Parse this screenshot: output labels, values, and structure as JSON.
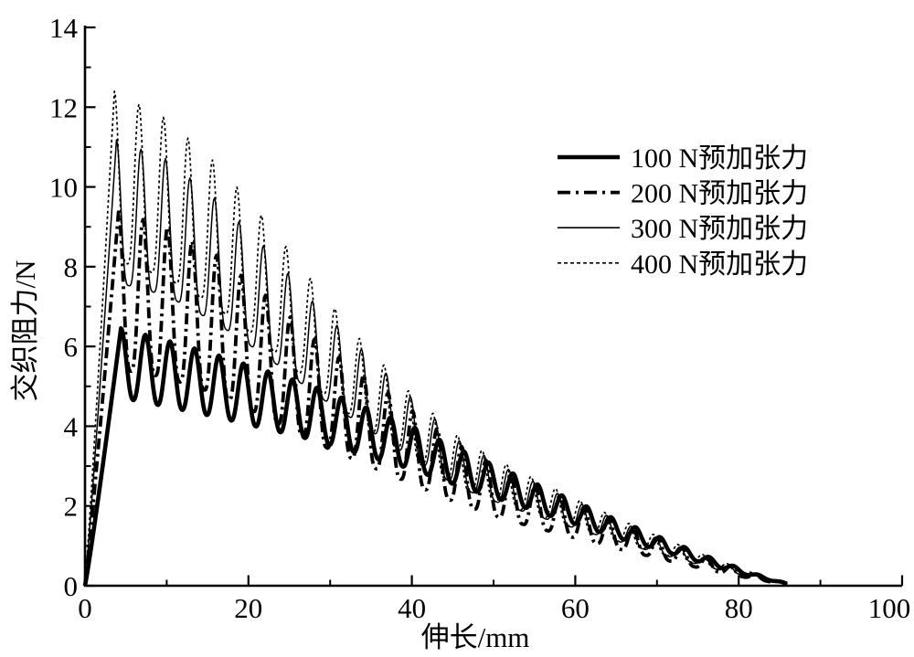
{
  "figure": {
    "background_color": "#ffffff",
    "ink_color": "#000000"
  },
  "chart_data": {
    "type": "line",
    "title": "",
    "xlabel": "伸长/mm",
    "ylabel": "交织阻力/N",
    "xlim": [
      0,
      100
    ],
    "ylim": [
      0,
      14
    ],
    "grid": false,
    "frame": "L-shaped (left and bottom spines only, inward ticks)",
    "x_major_ticks": [
      0,
      20,
      40,
      60,
      80,
      100
    ],
    "x_minor_ticks": [
      10,
      30,
      50,
      70,
      90
    ],
    "y_major_ticks": [
      0,
      2,
      4,
      6,
      8,
      10,
      12,
      14
    ],
    "y_minor_ticks": [
      1,
      3,
      5,
      7,
      9,
      11,
      13
    ],
    "legend": {
      "position": "upper-right-inside",
      "border": "none"
    },
    "oscillation": {
      "period_mm": 3.0,
      "pullout_end_mm": 86,
      "note": "sawtooth-like oscillation: each curve rises from (0,0) to its first peak, then oscillates with ~3 mm period while peak envelope decays to 0 at ~85 mm"
    },
    "envelope_x_mm": [
      3.6,
      10,
      16,
      22,
      28,
      34,
      40,
      46,
      52,
      58,
      64,
      70,
      76,
      82,
      86
    ],
    "series": [
      {
        "name": "100 N预加张力",
        "line_style": "thick-solid",
        "stroke_width": 4.6,
        "dash": [],
        "first_peak_x_mm": 4.4,
        "first_peak_N": 6.5,
        "trough_to_peak_ratio": 0.73,
        "peak_sharpness": 1.15,
        "peak_envelope_N": [
          6.5,
          6.15,
          5.8,
          5.4,
          5.0,
          4.5,
          4.0,
          3.4,
          2.85,
          2.3,
          1.75,
          1.25,
          0.75,
          0.3,
          0.05
        ]
      },
      {
        "name": "200 N预加张力",
        "line_style": "dash-dot",
        "stroke_width": 3.8,
        "dash": [
          12,
          5,
          3,
          5
        ],
        "first_peak_x_mm": 4.1,
        "first_peak_N": 9.4,
        "trough_to_peak_ratio": 0.58,
        "peak_sharpness": 1.5,
        "peak_envelope_N": [
          9.4,
          9.0,
          8.3,
          7.3,
          6.2,
          5.3,
          4.4,
          3.5,
          2.8,
          2.25,
          1.7,
          1.2,
          0.7,
          0.28,
          0.05
        ]
      },
      {
        "name": "300 N预加张力",
        "line_style": "thin-solid",
        "stroke_width": 1.5,
        "dash": [],
        "first_peak_x_mm": 3.85,
        "first_peak_N": 11.2,
        "trough_to_peak_ratio": 0.68,
        "peak_sharpness": 1.7,
        "peak_envelope_N": [
          11.2,
          10.7,
          9.7,
          8.5,
          7.1,
          5.9,
          4.7,
          3.6,
          2.9,
          2.3,
          1.75,
          1.2,
          0.7,
          0.28,
          0.05
        ]
      },
      {
        "name": "400 N预加张力",
        "line_style": "dotted",
        "stroke_width": 1.7,
        "dash": [
          3,
          3
        ],
        "first_peak_x_mm": 3.6,
        "first_peak_N": 12.4,
        "trough_to_peak_ratio": 0.66,
        "peak_sharpness": 1.7,
        "peak_envelope_N": [
          12.4,
          11.7,
          10.6,
          9.2,
          7.6,
          6.1,
          4.8,
          3.7,
          3.0,
          2.4,
          1.8,
          1.25,
          0.75,
          0.3,
          0.05
        ]
      }
    ]
  }
}
